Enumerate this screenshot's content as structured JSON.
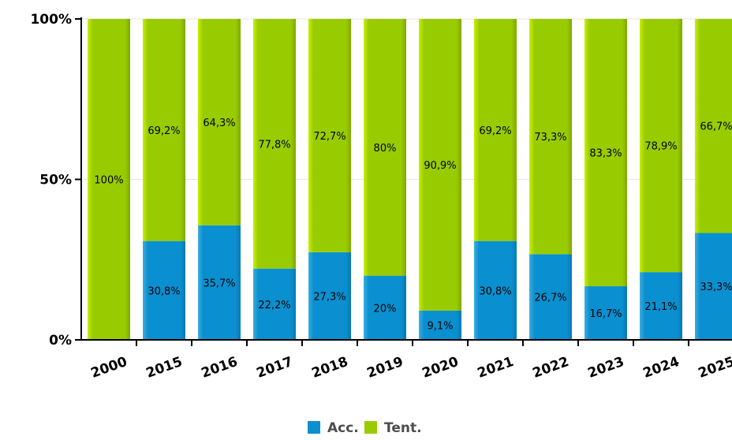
{
  "chart_data": {
    "type": "bar",
    "stacked": true,
    "normalized_percent": true,
    "categories": [
      "2000",
      "2015",
      "2016",
      "2017",
      "2018",
      "2019",
      "2020",
      "2021",
      "2022",
      "2023",
      "2024",
      "2025"
    ],
    "series": [
      {
        "name": "Acc.",
        "color": "#0a90d0",
        "values": [
          0,
          30.8,
          35.7,
          22.2,
          27.3,
          20,
          9.1,
          30.8,
          26.7,
          16.7,
          21.1,
          33.3
        ],
        "labels": [
          "",
          "30,8%",
          "35,7%",
          "22,2%",
          "27,3%",
          "20%",
          "9,1%",
          "30,8%",
          "26,7%",
          "16,7%",
          "21,1%",
          "33,3%"
        ]
      },
      {
        "name": "Tent.",
        "color": "#99cc00",
        "values": [
          100,
          69.2,
          64.3,
          77.8,
          72.7,
          80,
          90.9,
          69.2,
          73.3,
          83.3,
          78.9,
          66.7
        ],
        "labels": [
          "100%",
          "69,2%",
          "64,3%",
          "77,8%",
          "72,7%",
          "80%",
          "90,9%",
          "69,2%",
          "73,3%",
          "83,3%",
          "78,9%",
          "66,7%"
        ]
      }
    ],
    "yticks": [
      "0%",
      "50%",
      "100%"
    ],
    "ylim": [
      0,
      100
    ],
    "grid": true,
    "legend_position": "bottom-center",
    "title": "",
    "xlabel": "",
    "ylabel": ""
  }
}
